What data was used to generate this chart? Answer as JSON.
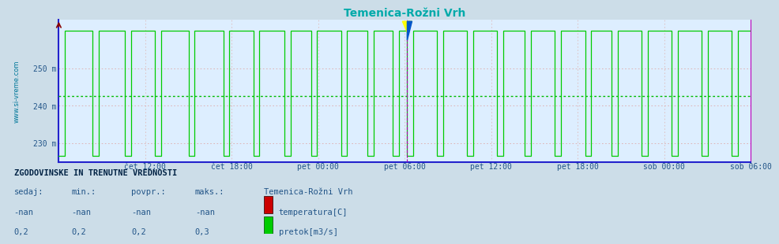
{
  "title": "Temenica-Rožni Vrh",
  "title_color": "#00aaaa",
  "bg_color": "#ccdde8",
  "plot_bg_color": "#ddeeff",
  "ylabel_text": "www.si-vreme.com",
  "ylabel_color": "#007799",
  "yticks": [
    230,
    240,
    250
  ],
  "ytick_labels": [
    "230 m",
    "240 m",
    "250 m"
  ],
  "ylim": [
    225,
    263
  ],
  "xlim_start": 0,
  "xlim_end": 576,
  "xtick_positions": [
    72,
    144,
    216,
    288,
    360,
    432,
    504,
    576
  ],
  "xtick_labels": [
    "čet 12:00",
    "čet 18:00",
    "pet 00:00",
    "pet 06:00",
    "pet 12:00",
    "pet 18:00",
    "sob 00:00",
    "sob 06:00"
  ],
  "grid_color_h": "#ddaaaa",
  "grid_color_v": "#ddbbbb",
  "avg_line_y": 242.5,
  "avg_line_color": "#00bb00",
  "border_left_color": "#2222cc",
  "border_bottom_color": "#2222cc",
  "border_right_color": "#bb00bb",
  "current_x": 290,
  "current_line_color": "#aa00aa",
  "flow_color": "#00cc00",
  "flow_high": 260.0,
  "flow_low": 226.5,
  "flow_data_x": [
    0,
    5,
    5,
    28,
    28,
    33,
    33,
    55,
    55,
    60,
    60,
    80,
    80,
    85,
    85,
    108,
    108,
    113,
    113,
    137,
    137,
    142,
    142,
    162,
    162,
    167,
    167,
    188,
    188,
    193,
    193,
    210,
    210,
    215,
    215,
    235,
    235,
    240,
    240,
    257,
    257,
    262,
    262,
    278,
    278,
    283,
    283,
    290,
    290,
    295,
    295,
    315,
    315,
    320,
    320,
    340,
    340,
    345,
    345,
    365,
    365,
    370,
    370,
    388,
    388,
    393,
    393,
    413,
    413,
    418,
    418,
    438,
    438,
    443,
    443,
    460,
    460,
    465,
    465,
    485,
    485,
    490,
    490,
    510,
    510,
    515,
    515,
    535,
    535,
    540,
    540,
    560,
    560,
    565,
    565,
    576
  ],
  "flow_data_y": [
    226.5,
    226.5,
    260,
    260,
    226.5,
    226.5,
    260,
    260,
    226.5,
    226.5,
    260,
    260,
    226.5,
    226.5,
    260,
    260,
    226.5,
    226.5,
    260,
    260,
    226.5,
    226.5,
    260,
    260,
    226.5,
    226.5,
    260,
    260,
    226.5,
    226.5,
    260,
    260,
    226.5,
    226.5,
    260,
    260,
    226.5,
    226.5,
    260,
    260,
    226.5,
    226.5,
    260,
    260,
    226.5,
    226.5,
    260,
    260,
    226.5,
    226.5,
    260,
    260,
    226.5,
    226.5,
    260,
    260,
    226.5,
    226.5,
    260,
    260,
    226.5,
    226.5,
    260,
    260,
    226.5,
    226.5,
    260,
    260,
    226.5,
    226.5,
    260,
    260,
    226.5,
    226.5,
    260,
    260,
    226.5,
    226.5,
    260,
    260,
    226.5,
    226.5,
    260,
    260,
    226.5,
    226.5,
    260,
    260,
    226.5,
    226.5,
    260,
    260,
    226.5,
    226.5,
    260,
    260
  ],
  "legend_title": "ZGODOVINSKE IN TRENUTNE VREDNOSTI",
  "legend_headers": [
    "sedaj:",
    "min.:",
    "povpr.:",
    "maks.:"
  ],
  "legend_station": "Temenica-Rožni Vrh",
  "legend_temp_label": "temperatura[C]",
  "legend_flow_label": "pretok[m3/s]",
  "legend_row1": [
    "-nan",
    "-nan",
    "-nan",
    "-nan"
  ],
  "legend_row2": [
    "0,2",
    "0,2",
    "0,2",
    "0,3"
  ],
  "temp_color": "#cc0000",
  "temp_color2": "#880000"
}
